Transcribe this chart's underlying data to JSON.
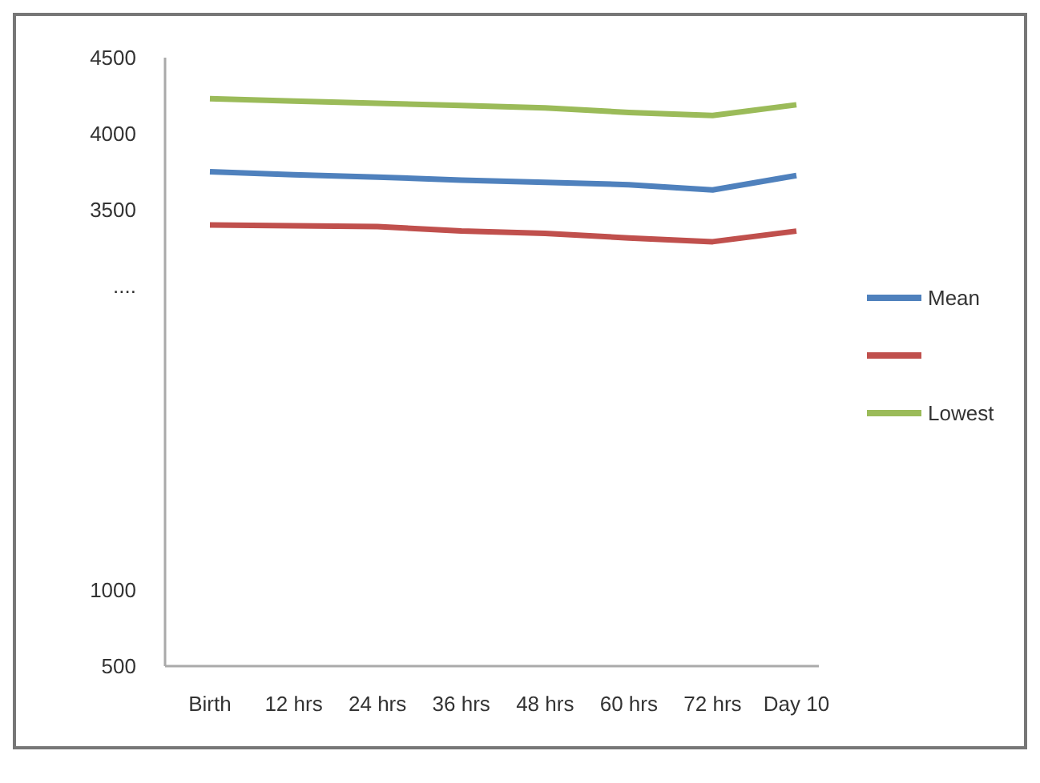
{
  "chart_data": {
    "type": "line",
    "categories": [
      "Birth",
      "12 hrs",
      "24 hrs",
      "36 hrs",
      "48 hrs",
      "60 hrs",
      "72 hrs",
      "Day 10"
    ],
    "series": [
      {
        "name": "Mean",
        "color": "#4f81bd",
        "values": [
          3750,
          3730,
          3715,
          3695,
          3680,
          3665,
          3630,
          3725
        ]
      },
      {
        "color": "#c0504d",
        "values": [
          3400,
          3395,
          3390,
          3360,
          3345,
          3315,
          3290,
          3360
        ]
      },
      {
        "name": "Lowest",
        "color": "#9bbb59",
        "values": [
          4230,
          4215,
          4200,
          4185,
          4170,
          4140,
          4120,
          4190
        ]
      }
    ],
    "ylim": [
      500,
      4500
    ],
    "yticks": [
      500,
      1000,
      {
        "value": 3000,
        "label": "...."
      },
      3500,
      4000,
      4500
    ],
    "grid": false,
    "legend": "right",
    "marker": "none",
    "line_style": "solid"
  }
}
